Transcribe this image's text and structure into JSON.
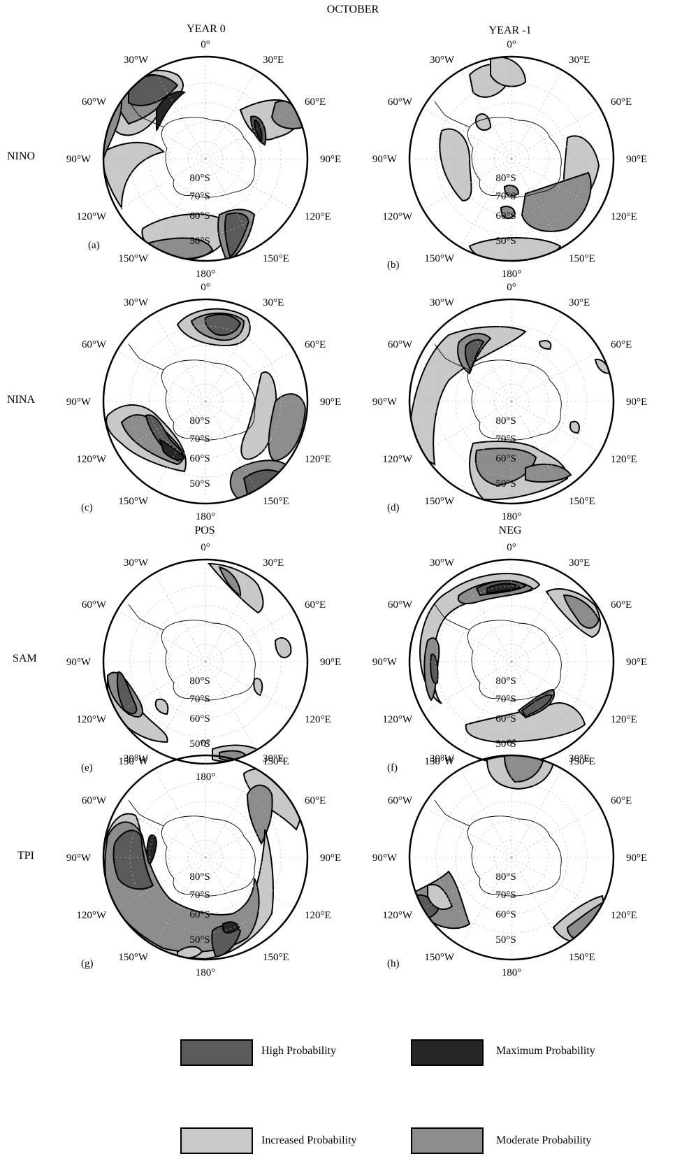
{
  "figure": {
    "month_title": "OCTOBER",
    "column_headers_top": [
      "YEAR 0",
      "YEAR -1"
    ],
    "column_headers_mid": [
      "POS",
      "NEG"
    ],
    "row_labels": [
      "NINO",
      "NINA",
      "SAM",
      "TPI"
    ],
    "panel_letters": [
      "(a)",
      "(b)",
      "(c)",
      "(d)",
      "(e)",
      "(f)",
      "(g)",
      "(h)"
    ],
    "longitude_labels": [
      "0°",
      "30°E",
      "60°E",
      "90°E",
      "120°E",
      "150°E",
      "180°",
      "150°W",
      "120°W",
      "90°W",
      "60°W",
      "30°W"
    ],
    "latitude_labels": [
      "80°S",
      "70°S",
      "60°S",
      "50°S"
    ]
  },
  "colors": {
    "increased": "#c8c8c8",
    "moderate": "#8c8c8c",
    "high": "#5a5a5a",
    "maximum": "#262626"
  },
  "legend": {
    "items": [
      {
        "label": "High Probability",
        "color": "#5a5a5a"
      },
      {
        "label": "Maximum Probability",
        "color": "#262626"
      },
      {
        "label": "Increased Probability",
        "color": "#c8c8c8"
      },
      {
        "label": "Moderate Probability",
        "color": "#8c8c8c"
      }
    ]
  }
}
